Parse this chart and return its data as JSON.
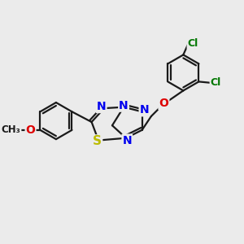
{
  "background_color": "#ebebeb",
  "bond_color": "#1a1a1a",
  "bond_width": 1.6,
  "atom_colors": {
    "N": "#0000ee",
    "S": "#bbbb00",
    "O": "#dd0000",
    "Cl": "#007700",
    "C": "#1a1a1a"
  },
  "font_size_atom": 9,
  "figsize": [
    3.0,
    3.0
  ],
  "dpi": 100
}
